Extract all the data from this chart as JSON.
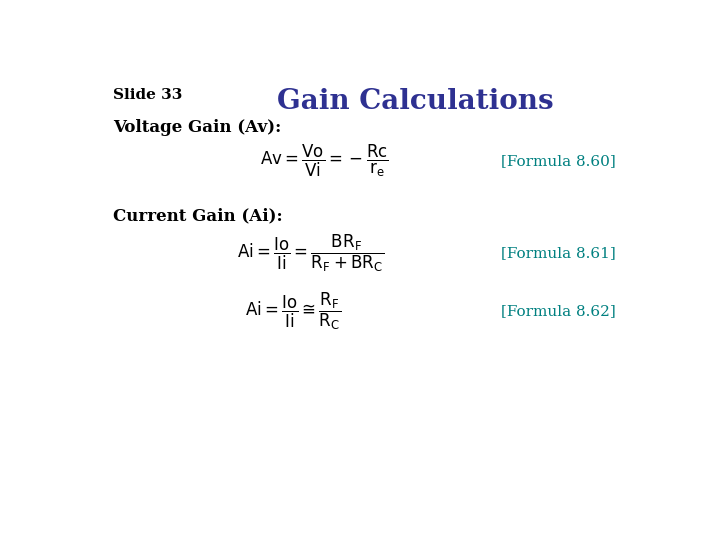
{
  "title": "Gain Calculations",
  "slide_label": "Slide 33",
  "title_color": "#2e3191",
  "slide_label_color": "#000000",
  "bg_color": "#ffffff",
  "formula_color": "#000000",
  "bracket_color": "#008080",
  "section_label_color": "#000000",
  "voltage_label": "Voltage Gain (Av):",
  "current_label": "Current Gain (Ai):",
  "formula_60": "$\\mathrm{Av = \\dfrac{Vo}{Vi} = -\\dfrac{Rc}{r_e}}$",
  "formula_61": "$\\mathrm{Ai = \\dfrac{Io}{Ii} = \\dfrac{BR_F}{R_F + BR_C}}$",
  "formula_62": "$\\mathrm{Ai = \\dfrac{Io}{Ii} \\cong \\dfrac{R_F}{R_C}}$",
  "bracket_60": "[Formula 8.60]",
  "bracket_61": "[Formula 8.61]",
  "bracket_62": "[Formula 8.62]",
  "title_fontsize": 20,
  "slide_label_fontsize": 11,
  "section_label_fontsize": 12,
  "formula_fontsize": 12,
  "bracket_fontsize": 11
}
